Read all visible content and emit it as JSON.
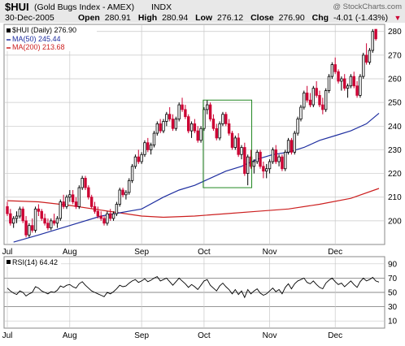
{
  "header": {
    "symbol": "$HUI",
    "name": "(Gold Bugs Index - AMEX)",
    "exchange": "INDX",
    "watermark": "@ StockCharts.com",
    "date": "30-Dec-2005",
    "open_label": "Open",
    "open": "280.91",
    "high_label": "High",
    "high": "280.94",
    "low_label": "Low",
    "low": "276.12",
    "close_label": "Close",
    "close": "276.90",
    "chg_label": "Chg",
    "chg": "-4.01 (-1.43%)",
    "chg_arrow": "▼"
  },
  "legend": {
    "main": "$HUI (Daily) 276.90",
    "ma50": "MA(50) 245.44",
    "ma200": "MA(200) 213.68"
  },
  "rsi_legend": "RSI(14) 64.42",
  "colors": {
    "up": "#000000",
    "down": "#cc0033",
    "ma50": "#1f2fa0",
    "ma200": "#cc1f1f",
    "box": "#228822",
    "grid": "#c8c8c8",
    "header_bg": "#e8e8e8"
  },
  "chart_data": [
    {
      "type": "candlestick",
      "title": "$HUI (Gold Bugs Index - AMEX)",
      "ylim": [
        190,
        283
      ],
      "y_ticks": [
        200,
        210,
        220,
        230,
        240,
        250,
        260,
        270,
        280
      ],
      "x_ticks": [
        {
          "label": "Jul",
          "bar": 0
        },
        {
          "label": "Aug",
          "bar": 20
        },
        {
          "label": "Sep",
          "bar": 43
        },
        {
          "label": "Oct",
          "bar": 63
        },
        {
          "label": "Nov",
          "bar": 84
        },
        {
          "label": "Dec",
          "bar": 105
        }
      ],
      "box": {
        "start_bar": 63,
        "end_bar": 78,
        "low": 214,
        "high": 251
      },
      "grid": true,
      "series": [
        {
          "name": "$HUI",
          "kind": "ohlc",
          "bars": [
            [
              206.0,
              208.0,
              202.0,
              203.0
            ],
            [
              203.0,
              205.0,
              198.0,
              199.0
            ],
            [
              199.0,
              202.0,
              197.0,
              201.0
            ],
            [
              201.0,
              204.0,
              199.0,
              202.0
            ],
            [
              202.0,
              206.0,
              201.0,
              205.0
            ],
            [
              205.0,
              206.0,
              199.0,
              200.0
            ],
            [
              200.0,
              202.0,
              193.0,
              194.0
            ],
            [
              194.0,
              199.0,
              193.0,
              198.0
            ],
            [
              198.0,
              201.0,
              195.0,
              196.0
            ],
            [
              196.0,
              206.0,
              195.0,
              205.0
            ],
            [
              205.0,
              207.0,
              202.0,
              204.0
            ],
            [
              204.0,
              205.0,
              200.0,
              201.0
            ],
            [
              201.0,
              203.0,
              198.0,
              199.0
            ],
            [
              199.0,
              201.0,
              196.0,
              197.0
            ],
            [
              197.0,
              201.0,
              196.0,
              200.0
            ],
            [
              200.0,
              203.0,
              198.0,
              199.0
            ],
            [
              199.0,
              202.0,
              197.0,
              201.0
            ],
            [
              201.0,
              209.0,
              200.0,
              208.0
            ],
            [
              208.0,
              211.0,
              205.0,
              206.0
            ],
            [
              206.0,
              211.0,
              205.0,
              210.0
            ],
            [
              210.0,
              213.0,
              208.0,
              211.0
            ],
            [
              211.0,
              213.0,
              207.0,
              208.0
            ],
            [
              208.0,
              210.0,
              205.0,
              206.0
            ],
            [
              206.0,
              215.0,
              205.0,
              214.0
            ],
            [
              214.0,
              219.0,
              213.0,
              218.0
            ],
            [
              218.0,
              219.0,
              213.0,
              214.0
            ],
            [
              214.0,
              215.0,
              209.0,
              210.0
            ],
            [
              210.0,
              211.0,
              205.0,
              206.0
            ],
            [
              206.0,
              208.0,
              203.0,
              204.0
            ],
            [
              204.0,
              206.0,
              201.0,
              202.0
            ],
            [
              202.0,
              204.0,
              200.0,
              201.0
            ],
            [
              201.0,
              202.0,
              198.0,
              199.0
            ],
            [
              199.0,
              204.0,
              198.0,
              203.0
            ],
            [
              203.0,
              205.0,
              200.0,
              201.0
            ],
            [
              201.0,
              204.0,
              200.0,
              203.0
            ],
            [
              203.0,
              208.0,
              202.0,
              207.0
            ],
            [
              207.0,
              214.0,
              206.0,
              213.0
            ],
            [
              213.0,
              214.0,
              210.0,
              211.0
            ],
            [
              211.0,
              213.0,
              209.0,
              212.0
            ],
            [
              212.0,
              218.0,
              211.0,
              217.0
            ],
            [
              217.0,
              224.0,
              216.0,
              223.0
            ],
            [
              223.0,
              228.0,
              222.0,
              227.0
            ],
            [
              227.0,
              230.0,
              224.0,
              225.0
            ],
            [
              225.0,
              229.0,
              224.0,
              228.0
            ],
            [
              228.0,
              234.0,
              227.0,
              233.0
            ],
            [
              233.0,
              235.0,
              229.0,
              230.0
            ],
            [
              230.0,
              233.0,
              228.0,
              232.0
            ],
            [
              232.0,
              238.0,
              231.0,
              237.0
            ],
            [
              237.0,
              242.0,
              236.0,
              241.0
            ],
            [
              241.0,
              243.0,
              237.0,
              238.0
            ],
            [
              238.0,
              243.0,
              237.0,
              242.0
            ],
            [
              242.0,
              246.0,
              240.0,
              245.0
            ],
            [
              245.0,
              248.0,
              242.0,
              243.0
            ],
            [
              243.0,
              245.0,
              238.0,
              239.0
            ],
            [
              239.0,
              244.0,
              238.0,
              243.0
            ],
            [
              243.0,
              250.0,
              242.0,
              249.0
            ],
            [
              249.0,
              252.0,
              246.0,
              247.0
            ],
            [
              247.0,
              249.0,
              243.0,
              244.0
            ],
            [
              244.0,
              245.0,
              237.0,
              238.0
            ],
            [
              238.0,
              242.0,
              235.0,
              241.0
            ],
            [
              241.0,
              243.0,
              237.0,
              238.0
            ],
            [
              238.0,
              240.0,
              233.0,
              234.0
            ],
            [
              234.0,
              240.0,
              233.0,
              239.0
            ],
            [
              239.0,
              248.0,
              238.0,
              247.0
            ],
            [
              247.0,
              251.0,
              245.0,
              249.0
            ],
            [
              249.0,
              250.0,
              242.0,
              243.0
            ],
            [
              243.0,
              245.0,
              238.0,
              239.0
            ],
            [
              239.0,
              241.0,
              234.0,
              235.0
            ],
            [
              235.0,
              242.0,
              234.0,
              241.0
            ],
            [
              241.0,
              246.0,
              240.0,
              245.0
            ],
            [
              245.0,
              246.0,
              240.0,
              241.0
            ],
            [
              241.0,
              243.0,
              236.0,
              237.0
            ],
            [
              237.0,
              238.0,
              230.0,
              231.0
            ],
            [
              231.0,
              236.0,
              230.0,
              235.0
            ],
            [
              235.0,
              237.0,
              227.0,
              228.0
            ],
            [
              228.0,
              232.0,
              226.0,
              231.0
            ],
            [
              231.0,
              233.0,
              219.0,
              220.0
            ],
            [
              220.0,
              228.0,
              215.0,
              227.0
            ],
            [
              227.0,
              230.0,
              222.0,
              223.0
            ],
            [
              223.0,
              226.0,
              220.0,
              225.0
            ],
            [
              225.0,
              230.0,
              224.0,
              229.0
            ],
            [
              229.0,
              230.0,
              222.0,
              223.0
            ],
            [
              223.0,
              225.0,
              218.0,
              221.0
            ],
            [
              221.0,
              224.0,
              218.0,
              222.0
            ],
            [
              222.0,
              226.0,
              220.0,
              225.0
            ],
            [
              225.0,
              231.0,
              224.0,
              230.0
            ],
            [
              230.0,
              232.0,
              224.0,
              225.0
            ],
            [
              225.0,
              228.0,
              223.0,
              227.0
            ],
            [
              227.0,
              228.0,
              221.0,
              222.0
            ],
            [
              222.0,
              230.0,
              221.0,
              229.0
            ],
            [
              229.0,
              235.0,
              228.0,
              234.0
            ],
            [
              234.0,
              235.0,
              228.0,
              229.0
            ],
            [
              229.0,
              238.0,
              228.0,
              237.0
            ],
            [
              237.0,
              244.0,
              236.0,
              243.0
            ],
            [
              243.0,
              249.0,
              242.0,
              248.0
            ],
            [
              248.0,
              255.0,
              247.0,
              254.0
            ],
            [
              254.0,
              257.0,
              250.0,
              251.0
            ],
            [
              251.0,
              254.0,
              248.0,
              249.0
            ],
            [
              249.0,
              257.0,
              248.0,
              256.0
            ],
            [
              256.0,
              259.0,
              252.0,
              253.0
            ],
            [
              253.0,
              255.0,
              248.0,
              249.0
            ],
            [
              249.0,
              252.0,
              245.0,
              247.0
            ],
            [
              247.0,
              256.0,
              246.0,
              255.0
            ],
            [
              255.0,
              262.0,
              254.0,
              261.0
            ],
            [
              261.0,
              267.0,
              260.0,
              266.0
            ],
            [
              266.0,
              269.0,
              262.0,
              263.0
            ],
            [
              263.0,
              264.0,
              258.0,
              259.0
            ],
            [
              259.0,
              261.0,
              255.0,
              260.0
            ],
            [
              260.0,
              262.0,
              255.0,
              256.0
            ],
            [
              256.0,
              258.0,
              252.0,
              257.0
            ],
            [
              257.0,
              262.0,
              256.0,
              261.0
            ],
            [
              261.0,
              263.0,
              256.0,
              257.0
            ],
            [
              257.0,
              259.0,
              252.0,
              253.0
            ],
            [
              253.0,
              262.0,
              252.0,
              261.0
            ],
            [
              261.0,
              271.0,
              260.0,
              270.0
            ],
            [
              270.0,
              275.0,
              266.0,
              267.0
            ],
            [
              267.0,
              273.0,
              266.0,
              272.0
            ],
            [
              272.0,
              281.0,
              271.0,
              280.0
            ],
            [
              280.91,
              280.94,
              276.12,
              276.9
            ]
          ]
        },
        {
          "name": "MA(50)",
          "kind": "line",
          "points": [
            [
              2,
              191
            ],
            [
              10,
              194
            ],
            [
              20,
              198
            ],
            [
              30,
              202
            ],
            [
              43,
              205
            ],
            [
              50,
              210
            ],
            [
              55,
              213
            ],
            [
              60,
              215
            ],
            [
              65,
              218
            ],
            [
              70,
              221
            ],
            [
              75,
              223
            ],
            [
              80,
              226
            ],
            [
              85,
              228
            ],
            [
              90,
              229
            ],
            [
              95,
              231
            ],
            [
              100,
              234
            ],
            [
              105,
              236
            ],
            [
              110,
              238
            ],
            [
              115,
              241
            ],
            [
              119,
              245.44
            ]
          ]
        },
        {
          "name": "MA(200)",
          "kind": "line",
          "points": [
            [
              0,
              208.5
            ],
            [
              10,
              208
            ],
            [
              20,
              206.5
            ],
            [
              30,
              204.5
            ],
            [
              43,
              202
            ],
            [
              50,
              201.5
            ],
            [
              60,
              202
            ],
            [
              70,
              203
            ],
            [
              80,
              204
            ],
            [
              90,
              205
            ],
            [
              100,
              207
            ],
            [
              110,
              209.5
            ],
            [
              119,
              213.68
            ]
          ]
        }
      ]
    },
    {
      "type": "line",
      "title": "RSI(14)",
      "ylim": [
        0,
        100
      ],
      "y_ticks": [
        10,
        30,
        50,
        70,
        90
      ],
      "ref_lines": [
        30,
        50,
        70
      ],
      "x_ticks": [
        "Jul",
        "Aug",
        "Sep",
        "Oct",
        "Nov",
        "Dec"
      ],
      "series": [
        {
          "name": "RSI(14)",
          "values": [
            56,
            52,
            49,
            47,
            52,
            50,
            45,
            48,
            50,
            58,
            56,
            52,
            50,
            48,
            51,
            50,
            53,
            59,
            57,
            60,
            61,
            58,
            56,
            62,
            65,
            60,
            56,
            52,
            50,
            48,
            46,
            44,
            50,
            48,
            51,
            55,
            60,
            58,
            59,
            63,
            66,
            68,
            64,
            66,
            69,
            65,
            67,
            70,
            72,
            66,
            68,
            70,
            65,
            60,
            65,
            70,
            66,
            62,
            57,
            61,
            58,
            54,
            60,
            66,
            68,
            60,
            56,
            52,
            59,
            63,
            58,
            54,
            48,
            54,
            47,
            52,
            43,
            54,
            48,
            52,
            55,
            49,
            46,
            48,
            52,
            56,
            51,
            54,
            48,
            57,
            62,
            55,
            62,
            66,
            68,
            70,
            64,
            62,
            66,
            61,
            57,
            55,
            63,
            67,
            70,
            65,
            61,
            63,
            58,
            62,
            66,
            61,
            57,
            65,
            70,
            66,
            68,
            71,
            66,
            64.42
          ]
        }
      ]
    }
  ]
}
